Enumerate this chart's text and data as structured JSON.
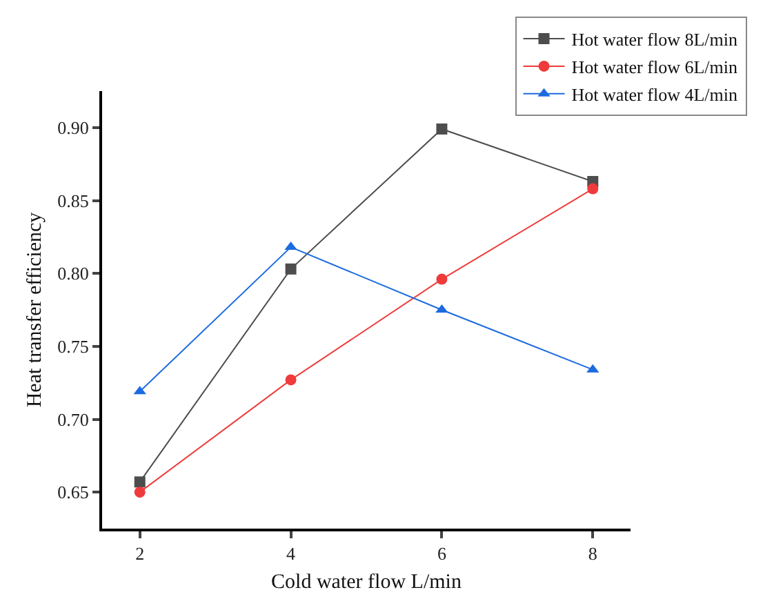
{
  "chart_data": {
    "type": "line",
    "xlabel": "Cold water flow L/min",
    "ylabel": "Heat transfer efficiency",
    "x": [
      2,
      4,
      6,
      8
    ],
    "series": [
      {
        "name": "Hot water flow 8L/min",
        "color": "#4d4d4d",
        "marker": "square",
        "values": [
          0.657,
          0.803,
          0.899,
          0.863
        ]
      },
      {
        "name": "Hot water flow 6L/min",
        "color": "#ef3b3b",
        "marker": "circle",
        "values": [
          0.65,
          0.727,
          0.796,
          0.858
        ]
      },
      {
        "name": "Hot water flow 4L/min",
        "color": "#1c6be0",
        "marker": "triangle",
        "values": [
          0.719,
          0.818,
          0.775,
          0.734
        ]
      }
    ],
    "xlim": [
      1.5,
      8.5
    ],
    "xticks": [
      2,
      4,
      6,
      8
    ],
    "ylim": [
      0.625,
      0.925
    ],
    "yticks": [
      {
        "value": 0.65,
        "label": "0.65"
      },
      {
        "value": 0.7,
        "label": "0.70"
      },
      {
        "value": 0.75,
        "label": "0.75"
      },
      {
        "value": 0.8,
        "label": "0.80"
      },
      {
        "value": 0.85,
        "label": "0.85"
      },
      {
        "value": 0.9,
        "label": "0.90"
      }
    ],
    "grid": false,
    "legend": "top right",
    "line_style": "solid"
  }
}
